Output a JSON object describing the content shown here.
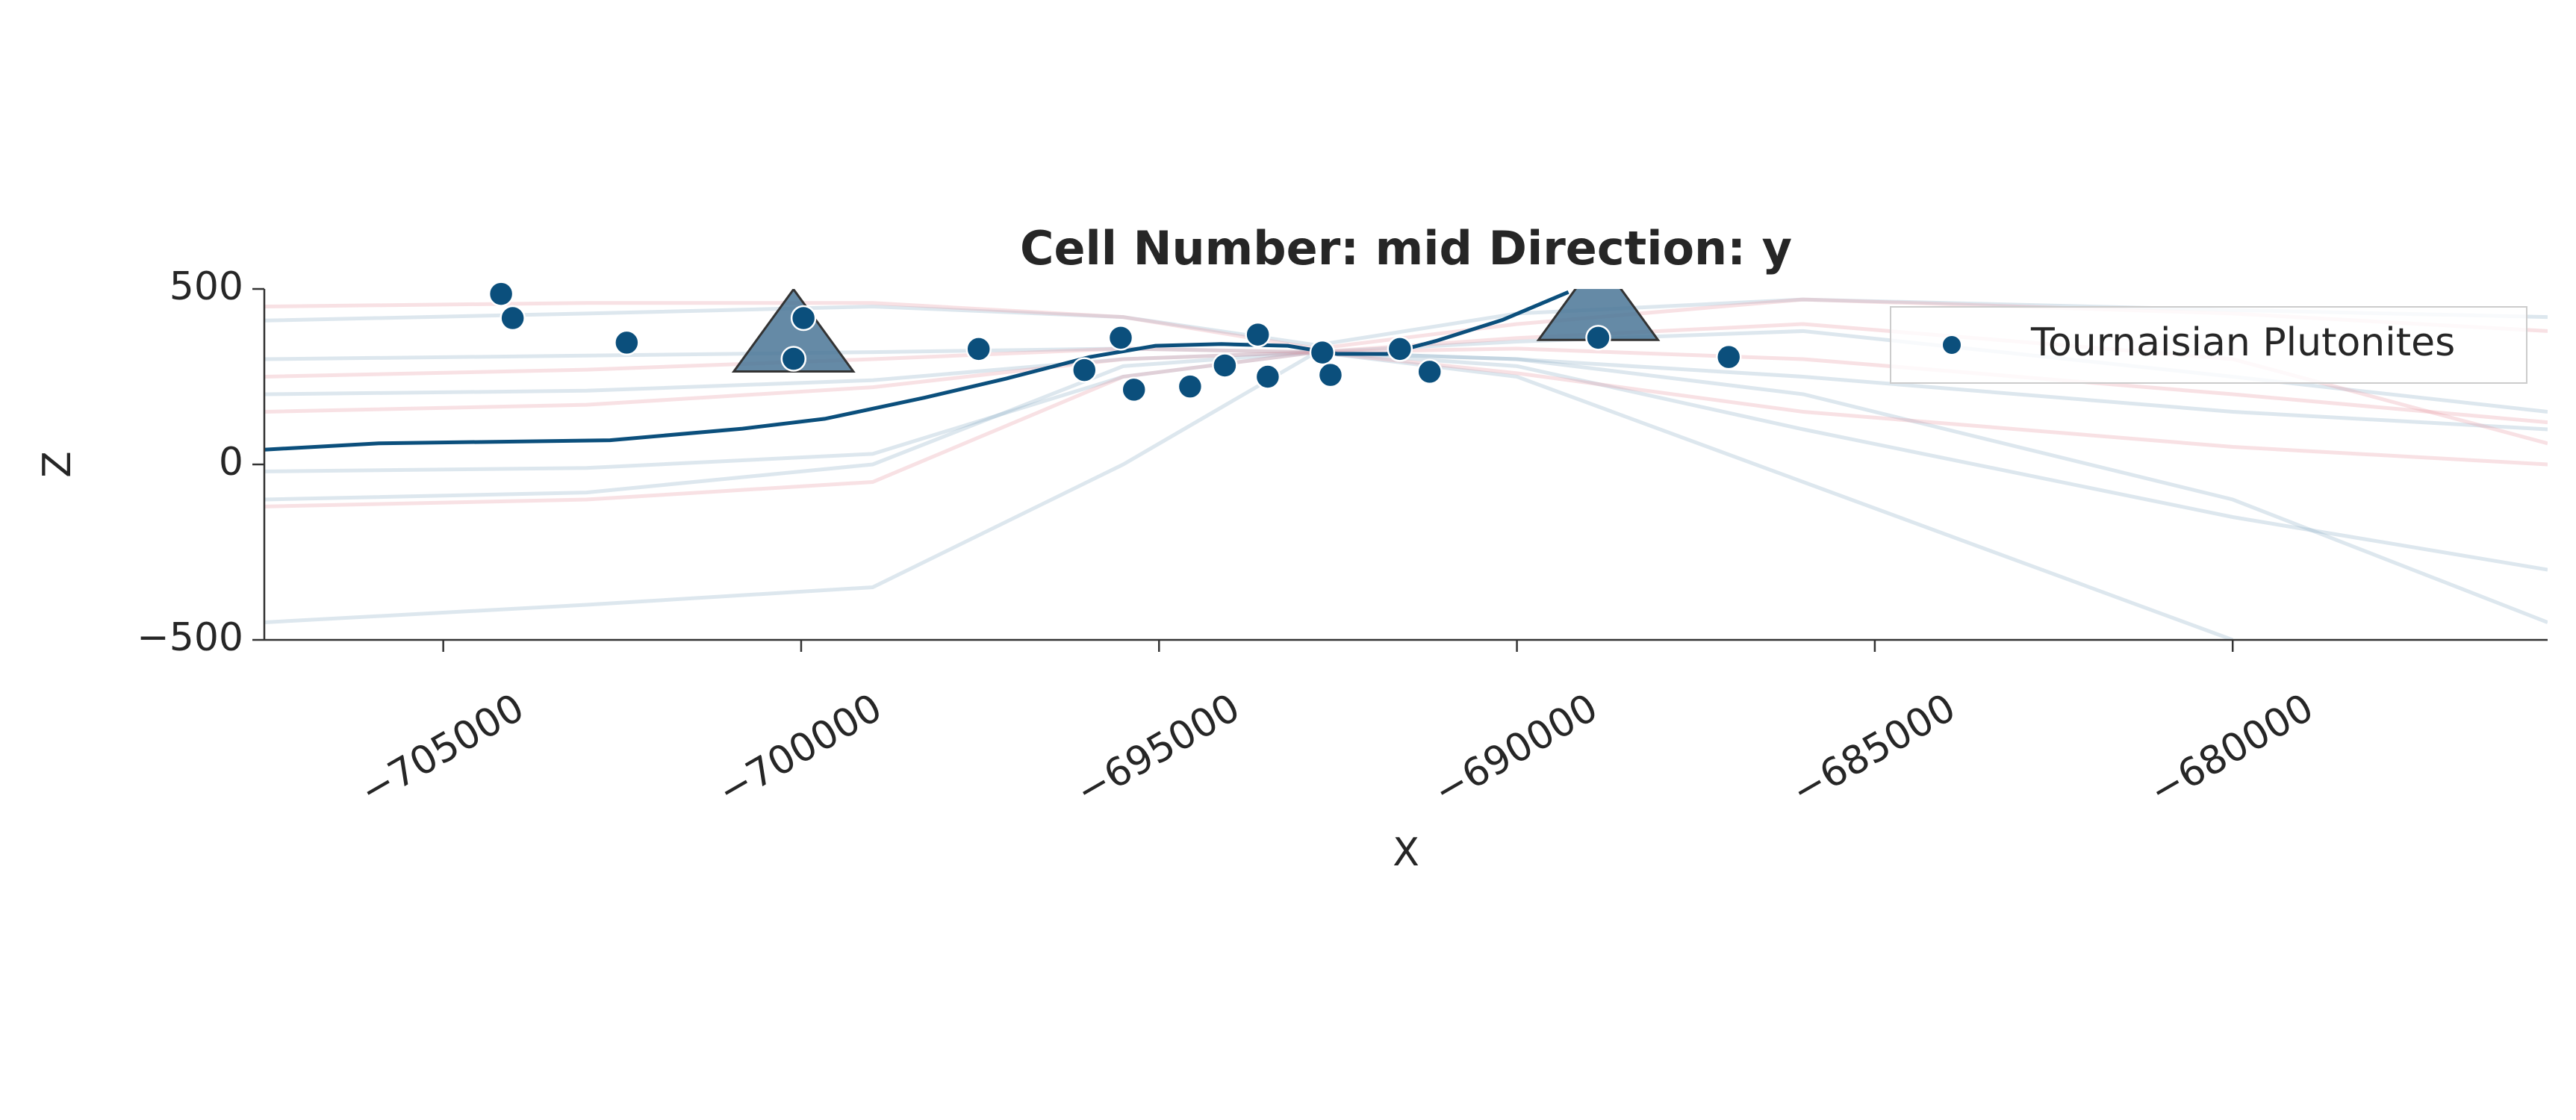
{
  "chart_data": {
    "type": "scatter",
    "title": "Cell Number: mid Direction: y",
    "xlabel": "X",
    "ylabel": "Z",
    "xlim": [
      -707500,
      -675600
    ],
    "ylim": [
      -500,
      500
    ],
    "xticks": [
      {
        "value": -705000,
        "label": "−705000"
      },
      {
        "value": -700000,
        "label": "−700000"
      },
      {
        "value": -695000,
        "label": "−695000"
      },
      {
        "value": -690000,
        "label": "−690000"
      },
      {
        "value": -685000,
        "label": "−685000"
      },
      {
        "value": -680000,
        "label": "−680000"
      }
    ],
    "yticks": [
      {
        "value": -500,
        "label": "−500"
      },
      0,
      500
    ],
    "grid": false,
    "legend": "upper right",
    "series": [
      {
        "name": "Tournaisian Plutonites",
        "color": "#0b4f7c",
        "x": [
          -704192,
          -704030,
          -702437,
          -700106,
          -699967,
          -697520,
          -696043,
          -695535,
          -695350,
          -694566,
          -694081,
          -693619,
          -693481,
          -692719,
          -692604,
          -691635,
          -691219,
          -688864,
          -687041
        ],
        "values": [
          486,
          417,
          347,
          301,
          417,
          329,
          269,
          361,
          213,
          222,
          282,
          370,
          250,
          319,
          255,
          329,
          264,
          361,
          306
        ]
      }
    ],
    "main_line": {
      "color": "#0b4f7c",
      "x": [
        -707516,
        -705900,
        -702670,
        -700820,
        -699670,
        -698280,
        -697130,
        -695970,
        -695050,
        -694130,
        -693200,
        -692510,
        -691820,
        -691130,
        -690200,
        -689280
      ],
      "values": [
        42,
        60,
        69,
        102,
        130,
        190,
        245,
        306,
        338,
        343,
        338,
        315,
        315,
        352,
        412,
        491
      ]
    },
    "lines": [
      {
        "color": "#8fb0c8",
        "x": [
          -707500,
          -703000,
          -699000,
          -695500,
          -692800,
          -690000,
          -686000,
          -680000,
          -675600
        ],
        "values": [
          410,
          430,
          450,
          420,
          340,
          430,
          470,
          440,
          420
        ]
      },
      {
        "color": "#8fb0c8",
        "x": [
          -707500,
          -703000,
          -699000,
          -695500,
          -692800,
          -690000,
          -686000,
          -680000,
          -675600
        ],
        "values": [
          300,
          310,
          320,
          330,
          320,
          300,
          250,
          150,
          100
        ]
      },
      {
        "color": "#8fb0c8",
        "x": [
          -707500,
          -703000,
          -699000,
          -695500,
          -692800,
          -690000,
          -686000,
          -680000,
          -675600
        ],
        "values": [
          -20,
          -10,
          30,
          250,
          320,
          280,
          100,
          -150,
          -300
        ]
      },
      {
        "color": "#8fb0c8",
        "x": [
          -707500,
          -703000,
          -699000,
          -695500,
          -692800,
          -690000,
          -686000,
          -680000,
          -675600
        ],
        "values": [
          -450,
          -400,
          -350,
          0,
          320,
          250,
          -50,
          -500,
          null
        ]
      },
      {
        "color": "#8fb0c8",
        "x": [
          -707500,
          -703000,
          -699000,
          -695500,
          -692800,
          -690000,
          -686000,
          -680000,
          -675600
        ],
        "values": [
          -100,
          -80,
          0,
          280,
          320,
          300,
          200,
          -100,
          -450
        ]
      },
      {
        "color": "#8fb0c8",
        "x": [
          -707500,
          -703000,
          -699000,
          -695500,
          -692800,
          -690000,
          -686000,
          -680000,
          -675600
        ],
        "values": [
          200,
          210,
          240,
          300,
          320,
          350,
          380,
          250,
          150
        ]
      },
      {
        "color": "#e89aa4",
        "x": [
          -707500,
          -703000,
          -699000,
          -695500,
          -692800,
          -690000,
          -686000,
          -680000,
          -675600
        ],
        "values": [
          450,
          460,
          460,
          420,
          330,
          400,
          470,
          430,
          380
        ]
      },
      {
        "color": "#e89aa4",
        "x": [
          -707500,
          -703000,
          -699000,
          -695500,
          -692800,
          -690000,
          -686000,
          -680000,
          -675600
        ],
        "values": [
          150,
          170,
          220,
          300,
          320,
          330,
          300,
          200,
          120
        ]
      },
      {
        "color": "#e89aa4",
        "x": [
          -707500,
          -703000,
          -699000,
          -695500,
          -692800,
          -690000,
          -686000,
          -680000,
          -675600
        ],
        "values": [
          -120,
          -100,
          -50,
          250,
          320,
          260,
          150,
          50,
          0
        ]
      },
      {
        "color": "#e89aa4",
        "x": [
          -707500,
          -703000,
          -699000,
          -695500,
          -692800,
          -690000,
          -686000,
          -680000,
          -675600
        ],
        "values": [
          250,
          270,
          300,
          330,
          320,
          360,
          400,
          300,
          60
        ]
      }
    ],
    "markers": {
      "color": "#4a7596",
      "x": [
        -700106,
        -688864
      ],
      "values": [
        350,
        440
      ]
    }
  }
}
